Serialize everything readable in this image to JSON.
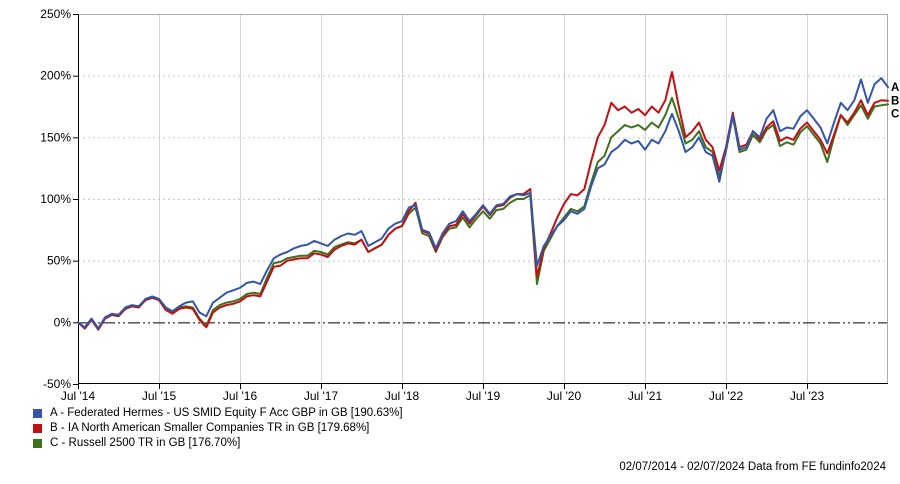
{
  "chart_data": {
    "type": "line",
    "title": "",
    "xlabel": "",
    "ylabel": "",
    "grid": true,
    "legend_position": "bottom-left",
    "x_axis": {
      "span_months": 120,
      "tick_months": [
        0,
        12,
        24,
        36,
        48,
        60,
        72,
        84,
        96,
        108
      ],
      "tick_labels": [
        "Jul '14",
        "Jul '15",
        "Jul '16",
        "Jul '17",
        "Jul '18",
        "Jul '19",
        "Jul '20",
        "Jul '21",
        "Jul '22",
        "Jul '23"
      ]
    },
    "y_axis": {
      "min": -50,
      "max": 250,
      "ticks": [
        250,
        200,
        150,
        100,
        50,
        0,
        -50
      ],
      "tick_labels": [
        "250%",
        "200%",
        "150%",
        "100%",
        "50%",
        "0%",
        "-50%"
      ],
      "zero_line": 0
    },
    "series": [
      {
        "id": "C",
        "name": "Russell 2500 TR in GB",
        "final_value": "176.70%",
        "color": "#3F701D",
        "values": [
          0,
          -5,
          2,
          -5,
          3,
          6,
          5,
          11,
          13,
          13,
          18,
          20,
          18,
          11,
          8,
          12,
          13,
          12,
          3,
          -3,
          10,
          14,
          16,
          17,
          19,
          23,
          24,
          23,
          36,
          48,
          49,
          52,
          53,
          54,
          54,
          58,
          57,
          55,
          61,
          63,
          65,
          64,
          67,
          57,
          60,
          63,
          71,
          76,
          78,
          88,
          93,
          72,
          70,
          57,
          69,
          76,
          77,
          85,
          77,
          84,
          90,
          84,
          91,
          92,
          97,
          100,
          100,
          103,
          31,
          58,
          68,
          78,
          85,
          92,
          90,
          94,
          113,
          130,
          135,
          150,
          155,
          160,
          158,
          160,
          156,
          162,
          158,
          168,
          182,
          165,
          145,
          148,
          155,
          142,
          138,
          118,
          139,
          167,
          138,
          140,
          152,
          146,
          156,
          160,
          143,
          146,
          144,
          154,
          159,
          152,
          145,
          130,
          150,
          168,
          160,
          168,
          176,
          165,
          175,
          176,
          176.7
        ]
      },
      {
        "id": "B",
        "name": "IA North American Smaller Companies TR in GB",
        "final_value": "179.68%",
        "color": "#C01010",
        "values": [
          0,
          -5,
          2,
          -6,
          3,
          6,
          5,
          11,
          13,
          12,
          18,
          20,
          18,
          10,
          7,
          11,
          12,
          11,
          2,
          -4,
          8,
          12,
          14,
          15,
          17,
          21,
          22,
          21,
          33,
          45,
          46,
          50,
          51,
          52,
          52,
          56,
          55,
          53,
          59,
          62,
          64,
          63,
          67,
          57,
          60,
          63,
          71,
          76,
          78,
          90,
          97,
          74,
          72,
          58,
          70,
          78,
          79,
          88,
          80,
          87,
          94,
          87,
          94,
          95,
          101,
          104,
          104,
          108,
          37,
          60,
          72,
          85,
          96,
          104,
          103,
          108,
          130,
          150,
          160,
          178,
          172,
          175,
          170,
          173,
          168,
          175,
          170,
          180,
          203,
          175,
          150,
          155,
          162,
          148,
          142,
          123,
          142,
          170,
          142,
          144,
          155,
          148,
          158,
          163,
          147,
          150,
          148,
          157,
          162,
          155,
          148,
          137,
          152,
          168,
          162,
          170,
          180,
          168,
          178,
          180,
          179.68
        ]
      },
      {
        "id": "A",
        "name": "Federated Hermes - US SMID Equity F Acc GBP in GB",
        "final_value": "190.63%",
        "color": "#3355AA",
        "values": [
          0,
          -4,
          3,
          -5,
          4,
          7,
          6,
          12,
          14,
          13,
          19,
          21,
          19,
          12,
          9,
          13,
          16,
          17,
          8,
          5,
          16,
          20,
          24,
          26,
          28,
          32,
          33,
          31,
          42,
          52,
          55,
          57,
          60,
          62,
          63,
          66,
          64,
          62,
          67,
          70,
          72,
          71,
          74,
          62,
          65,
          68,
          76,
          80,
          82,
          93,
          95,
          75,
          73,
          60,
          72,
          80,
          82,
          90,
          82,
          88,
          95,
          88,
          95,
          96,
          102,
          104,
          103,
          105,
          46,
          62,
          70,
          78,
          83,
          90,
          88,
          92,
          110,
          125,
          128,
          138,
          142,
          148,
          145,
          147,
          140,
          148,
          145,
          155,
          169,
          155,
          138,
          142,
          150,
          138,
          135,
          114,
          140,
          168,
          140,
          142,
          155,
          150,
          165,
          172,
          155,
          158,
          157,
          167,
          172,
          165,
          158,
          145,
          162,
          178,
          172,
          180,
          197,
          178,
          193,
          198,
          190.63
        ]
      }
    ],
    "end_labels": [
      {
        "id": "A",
        "series": "A"
      },
      {
        "id": "B",
        "series": "B"
      },
      {
        "id": "C",
        "series": "C"
      }
    ]
  },
  "legend": {
    "items": [
      {
        "id": "A",
        "label": "A - Federated Hermes - US SMID Equity F Acc GBP in GB [190.63%]",
        "color": "#3355AA"
      },
      {
        "id": "B",
        "label": "B - IA North American Smaller Companies TR in GB [179.68%]",
        "color": "#C01010"
      },
      {
        "id": "C",
        "label": "C - Russell 2500 TR in GB [176.70%]",
        "color": "#3F701D"
      }
    ]
  },
  "footer": {
    "text": "02/07/2014 - 02/07/2024 Data from FE fundinfo2024"
  },
  "style_colors": {
    "grid_vertical": "#D4D4D4",
    "grid_horizontal_dashed": "#C8C8C8",
    "border_light": "#AAAAAA",
    "axis_dark": "#000000",
    "text": "#000000"
  }
}
